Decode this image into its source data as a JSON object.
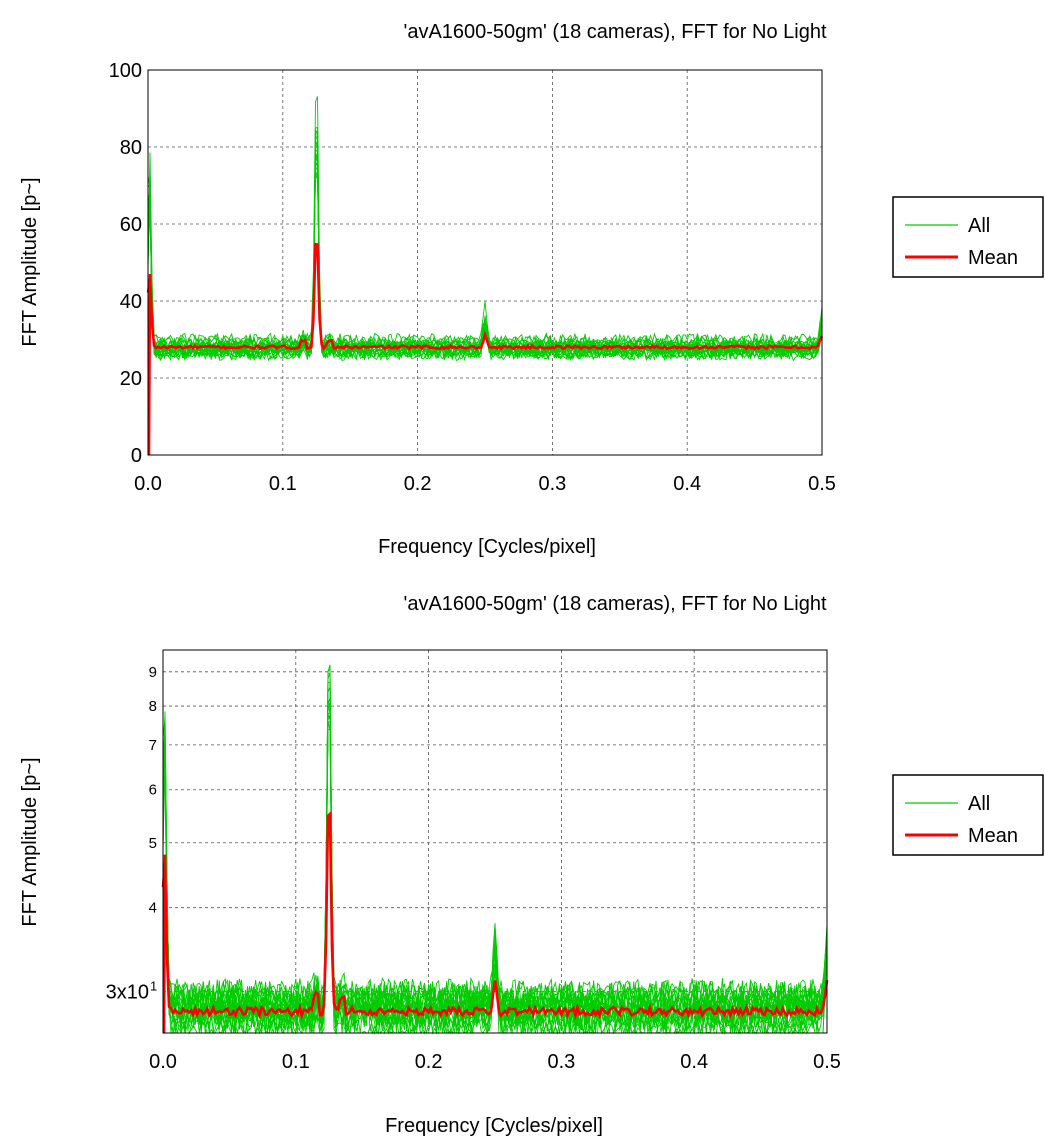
{
  "chart_data": [
    {
      "type": "line",
      "title": "'avA1600-50gm' (18 cameras), FFT for No Light",
      "xlabel": "Frequency [Cycles/pixel]",
      "ylabel": "FFT Amplitude [p~]",
      "xlim": [
        0,
        0.5
      ],
      "ylim": [
        0,
        100
      ],
      "yscale": "linear",
      "grid": true,
      "legend_position": "right",
      "x_ticks": [
        "0.0",
        "0.1",
        "0.2",
        "0.3",
        "0.4",
        "0.5"
      ],
      "y_ticks": [
        "0",
        "20",
        "40",
        "60",
        "80",
        "100"
      ],
      "series": [
        {
          "name": "All",
          "color": "#00cc00",
          "style": "thin",
          "count": 18
        },
        {
          "name": "Mean",
          "color": "#ff0000",
          "style": "thick",
          "baseline": 28.0,
          "peaks": [
            {
              "x": 0.0,
              "y": 0
            },
            {
              "x": 0.001,
              "y": 47
            },
            {
              "x": 0.125,
              "y": 60
            },
            {
              "x": 0.25,
              "y": 31
            },
            {
              "x": 0.5,
              "y": 31
            }
          ]
        }
      ],
      "all_peaks": [
        {
          "x": 0.001,
          "y": 77
        },
        {
          "x": 0.125,
          "y": 97
        },
        {
          "x": 0.25,
          "y": 36
        },
        {
          "x": 0.5,
          "y": 36
        }
      ]
    },
    {
      "type": "line",
      "title": "'avA1600-50gm' (18 cameras), FFT for No Light",
      "xlabel": "Frequency [Cycles/pixel]",
      "ylabel": "FFT Amplitude [p~]",
      "xlim": [
        0,
        0.5
      ],
      "ylim": [
        26,
        97
      ],
      "yscale": "log",
      "grid": true,
      "legend_position": "right",
      "x_ticks": [
        "0.0",
        "0.1",
        "0.2",
        "0.3",
        "0.4",
        "0.5"
      ],
      "y_ticks": [
        {
          "value": 30,
          "label": "3x10",
          "sup": "1"
        },
        {
          "value": 40,
          "label": "4"
        },
        {
          "value": 50,
          "label": "5"
        },
        {
          "value": 60,
          "label": "6"
        },
        {
          "value": 70,
          "label": "7"
        },
        {
          "value": 80,
          "label": "8"
        },
        {
          "value": 90,
          "label": "9"
        }
      ],
      "series": [
        {
          "name": "All",
          "color": "#00cc00",
          "style": "thin",
          "count": 18
        },
        {
          "name": "Mean",
          "color": "#ff0000",
          "style": "thick",
          "baseline": 28.0,
          "peaks": [
            {
              "x": 0.001,
              "y": 48
            },
            {
              "x": 0.125,
              "y": 60
            },
            {
              "x": 0.25,
              "y": 31
            },
            {
              "x": 0.5,
              "y": 31
            }
          ]
        }
      ],
      "all_peaks": [
        {
          "x": 0.001,
          "y": 77
        },
        {
          "x": 0.125,
          "y": 97
        },
        {
          "x": 0.25,
          "y": 36
        },
        {
          "x": 0.5,
          "y": 36
        }
      ]
    }
  ]
}
